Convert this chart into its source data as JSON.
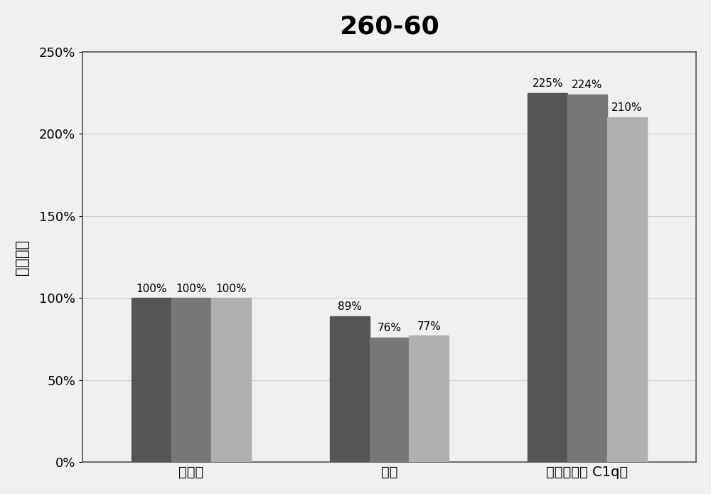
{
  "title": "260-60",
  "title_fontsize": 26,
  "title_fontweight": "bold",
  "ylabel": "测値变化",
  "ylabel_fontsize": 15,
  "categories": [
    "未炁活",
    "炁活",
    "炁活（添加 C1q）"
  ],
  "series": [
    {
      "values": [
        100,
        89,
        225
      ],
      "color": "#555555"
    },
    {
      "values": [
        100,
        76,
        224
      ],
      "color": "#777777"
    },
    {
      "values": [
        100,
        77,
        210
      ],
      "color": "#b0b0b0"
    }
  ],
  "ylim": [
    0,
    250
  ],
  "yticks": [
    0,
    50,
    100,
    150,
    200,
    250
  ],
  "bar_labels_by_group": [
    [
      "100%",
      "100%",
      "100%"
    ],
    [
      "89%",
      "76%",
      "77%"
    ],
    [
      "225%",
      "224%",
      "210%"
    ]
  ],
  "bar_width": 0.2,
  "background_color": "#f0f0f0",
  "plot_bg_color": "#f0f0f0",
  "border_color": "#555555",
  "grid_color": "#cccccc",
  "label_fontsize": 11,
  "tick_fontsize": 13,
  "cat_fontsize": 14
}
